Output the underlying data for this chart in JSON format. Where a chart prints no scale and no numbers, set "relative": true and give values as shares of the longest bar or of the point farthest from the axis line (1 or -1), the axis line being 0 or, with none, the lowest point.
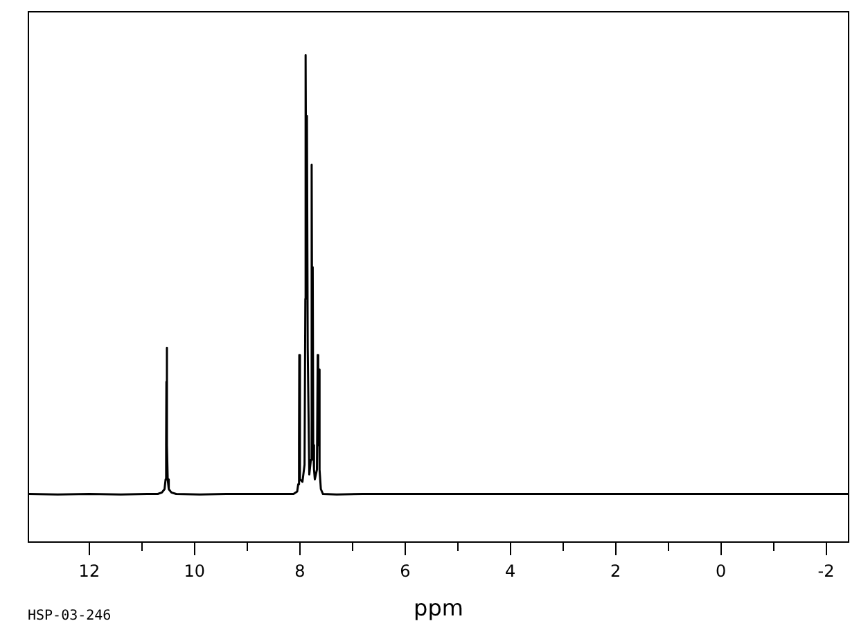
{
  "chart_data": {
    "type": "line",
    "xlabel": "ppm",
    "annotations": [
      "HSP-03-246"
    ],
    "relative": true,
    "tick_labels": "x",
    "xlim": [
      13.17,
      -2.44
    ],
    "xticks": [
      12,
      {
        "value": 11,
        "label": null
      },
      10,
      {
        "value": 9,
        "label": null
      },
      8,
      {
        "value": 7,
        "label": null
      },
      6,
      {
        "value": 5,
        "label": null
      },
      4,
      {
        "value": 3,
        "label": null
      },
      2,
      {
        "value": 1,
        "label": null
      },
      0,
      {
        "value": -1,
        "label": null
      },
      -2
    ],
    "color": "#000000",
    "x": [
      13.15,
      12.6,
      12.0,
      11.4,
      10.9,
      10.7,
      10.62,
      10.57,
      10.55,
      10.54,
      10.535,
      10.53,
      10.525,
      10.52,
      10.51,
      10.49,
      10.44,
      10.35,
      9.9,
      9.4,
      8.9,
      8.4,
      8.12,
      8.05,
      8.03,
      8.015,
      8.01,
      8.005,
      7.99,
      7.95,
      7.91,
      7.895,
      7.89,
      7.875,
      7.865,
      7.85,
      7.82,
      7.79,
      7.775,
      7.765,
      7.755,
      7.745,
      7.73,
      7.715,
      7.675,
      7.66,
      7.65,
      7.635,
      7.625,
      7.6,
      7.56,
      7.3,
      6.8,
      6.2,
      5.5,
      4.8,
      4.0,
      3.2,
      2.4,
      1.6,
      0.8,
      0,
      -0.8,
      -1.6,
      -2.42
    ],
    "values": [
      0.1,
      0.099,
      0.1,
      0.099,
      0.1,
      0.1,
      0.103,
      0.11,
      0.13,
      0.2,
      0.33,
      0.4,
      0.33,
      0.2,
      0.13,
      0.11,
      0.103,
      0.1,
      0.099,
      0.1,
      0.1,
      0.1,
      0.1,
      0.105,
      0.12,
      0.2,
      0.385,
      0.2,
      0.13,
      0.125,
      0.16,
      0.5,
      1,
      0.6,
      0.875,
      0.4,
      0.14,
      0.17,
      0.775,
      0.4,
      0.565,
      0.2,
      0.15,
      0.13,
      0.15,
      0.385,
      0.2,
      0.355,
      0.15,
      0.11,
      0.1,
      0.099,
      0.1,
      0.1,
      0.1,
      0.1,
      0.1,
      0.1,
      0.1,
      0.1,
      0.1,
      0.1,
      0.1,
      0.1,
      0.1
    ]
  }
}
